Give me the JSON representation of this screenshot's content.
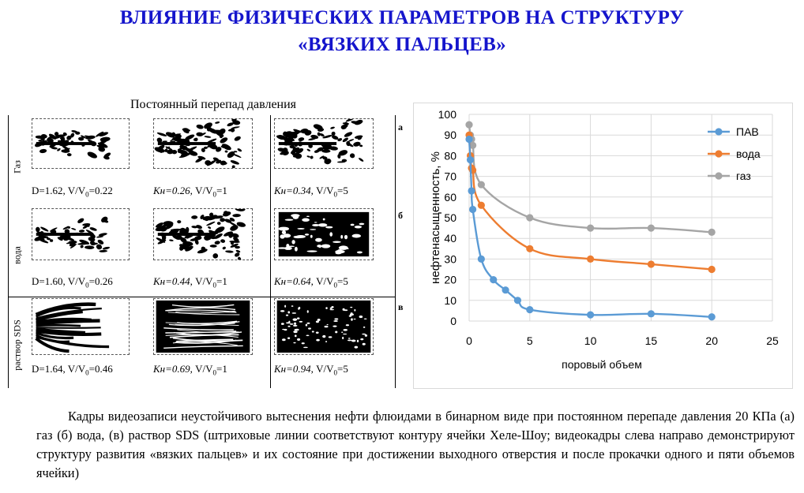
{
  "title": {
    "line1": "ВЛИЯНИЕ ФИЗИЧЕСКИХ ПАРАМЕТРОВ НА СТРУКТУРУ",
    "line2": "«ВЯЗКИХ ПАЛЬЦЕВ»"
  },
  "figure": {
    "caption": "Постоянный перепад давления",
    "rows": [
      {
        "label": "Газ",
        "side_label": "а",
        "frames": [
          {
            "pre": "D=1.62, V/V",
            "sub": "0",
            "post": "=0.22",
            "italic_pre": ""
          },
          {
            "italic_pre": "Kн=0.26,",
            "pre": " V/V",
            "sub": "0",
            "post": "=1"
          },
          {
            "italic_pre": "Kн=0.34,",
            "pre": " V/V",
            "sub": "0",
            "post": "=5"
          }
        ]
      },
      {
        "label": "вода",
        "side_label": "б",
        "frames": [
          {
            "pre": "D=1.60, V/V",
            "sub": "0",
            "post": "=0.26",
            "italic_pre": ""
          },
          {
            "italic_pre": "Kн=0.44,",
            "pre": " V/V",
            "sub": "0",
            "post": "=1"
          },
          {
            "italic_pre": "Kн=0.64,",
            "pre": " V/V",
            "sub": "0",
            "post": "=5"
          }
        ]
      },
      {
        "label": "раствор SDS",
        "side_label": "в",
        "frames": [
          {
            "pre": "D=1.64, V/V",
            "sub": "0",
            "post": "=0.46",
            "italic_pre": ""
          },
          {
            "italic_pre": "Kн=0.69,",
            "pre": " V/V",
            "sub": "0",
            "post": "=1"
          },
          {
            "italic_pre": "Kн=0.94,",
            "pre": " V/V",
            "sub": "0",
            "post": "=5"
          }
        ]
      }
    ]
  },
  "chart_data": {
    "type": "line",
    "title": "",
    "xlabel": "поровый объем",
    "ylabel": "нефтенасыщенность, %",
    "xlim": [
      0,
      25
    ],
    "ylim": [
      0,
      100
    ],
    "xticks": [
      0,
      5,
      10,
      15,
      20,
      25
    ],
    "yticks": [
      0,
      10,
      20,
      30,
      40,
      50,
      60,
      70,
      80,
      90,
      100
    ],
    "grid": true,
    "legend_position": "top-right",
    "series": [
      {
        "name": "ПАВ",
        "color": "#5b9bd5",
        "x": [
          0,
          0.1,
          0.2,
          0.3,
          1,
          2,
          3,
          4,
          5,
          10,
          15,
          20
        ],
        "y": [
          88,
          78,
          63,
          54,
          30,
          20,
          15,
          10,
          5.5,
          3,
          3.5,
          2
        ]
      },
      {
        "name": "вода",
        "color": "#ed7d31",
        "x": [
          0,
          0.1,
          0.2,
          0.3,
          1,
          5,
          10,
          15,
          20
        ],
        "y": [
          90,
          80,
          74,
          73,
          56,
          35,
          30,
          27.5,
          25
        ]
      },
      {
        "name": "газ",
        "color": "#a5a5a5",
        "x": [
          0,
          0.1,
          0.2,
          0.3,
          1,
          5,
          10,
          15,
          20
        ],
        "y": [
          95,
          90,
          88,
          85,
          66,
          50,
          45,
          45,
          43
        ]
      }
    ]
  },
  "body_caption": "Кадры видеозаписи неустойчивого вытеснения нефти флюидами в бинарном виде при постоянном перепаде давления 20 КПа (а) газ (б) вода, (в) раствор SDS (штриховые линии соответствуют контуру ячейки Хеле-Шоу; видеокадры слева направо демонстрируют структуру развития «вязких пальцев» и их состояние при достижении выходного отверстия и после прокачки одного и пяти объемов ячейки)"
}
